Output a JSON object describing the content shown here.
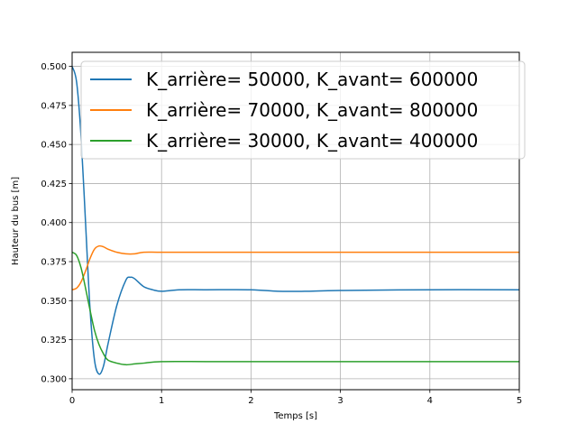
{
  "chart_data": {
    "type": "line",
    "title": "",
    "xlabel": "Temps [s]",
    "ylabel": "Hauteur du bus [m]",
    "xlim": [
      0,
      5
    ],
    "ylim": [
      0.293,
      0.509
    ],
    "xticks": [
      0,
      1,
      2,
      3,
      4,
      5
    ],
    "xtick_labels": [
      "0",
      "1",
      "2",
      "3",
      "4",
      "5"
    ],
    "yticks": [
      0.3,
      0.325,
      0.35,
      0.375,
      0.4,
      0.425,
      0.45,
      0.475,
      0.5
    ],
    "ytick_labels": [
      "0.300",
      "0.325",
      "0.350",
      "0.375",
      "0.400",
      "0.425",
      "0.450",
      "0.475",
      "0.500"
    ],
    "grid": true,
    "legend_position": "top-right",
    "series": [
      {
        "name": "K_arrière= 50000, K_avant= 600000",
        "color": "#1f77b4",
        "x": [
          0,
          0.05,
          0.1,
          0.15,
          0.2,
          0.25,
          0.3,
          0.35,
          0.4,
          0.5,
          0.6,
          0.65,
          0.7,
          0.8,
          0.9,
          1.0,
          1.2,
          1.5,
          2.0,
          2.3,
          2.6,
          3.0,
          4.0,
          5.0
        ],
        "y": [
          0.5,
          0.49,
          0.455,
          0.4,
          0.345,
          0.312,
          0.303,
          0.308,
          0.322,
          0.347,
          0.363,
          0.365,
          0.364,
          0.359,
          0.357,
          0.356,
          0.357,
          0.357,
          0.357,
          0.356,
          0.356,
          0.3565,
          0.357,
          0.357
        ]
      },
      {
        "name": "K_arrière= 70000, K_avant= 800000",
        "color": "#ff7f0e",
        "x": [
          0,
          0.05,
          0.1,
          0.15,
          0.2,
          0.25,
          0.3,
          0.35,
          0.4,
          0.5,
          0.6,
          0.7,
          0.8,
          1.0,
          1.5,
          2.0,
          3.0,
          4.0,
          5.0
        ],
        "y": [
          0.357,
          0.358,
          0.362,
          0.369,
          0.377,
          0.383,
          0.385,
          0.3845,
          0.383,
          0.381,
          0.38,
          0.38,
          0.381,
          0.381,
          0.381,
          0.381,
          0.381,
          0.381,
          0.381
        ]
      },
      {
        "name": "K_arrière= 30000, K_avant= 400000",
        "color": "#2ca02c",
        "x": [
          0,
          0.05,
          0.1,
          0.15,
          0.2,
          0.25,
          0.3,
          0.35,
          0.4,
          0.5,
          0.6,
          0.7,
          0.8,
          1.0,
          1.5,
          2.0,
          3.0,
          4.0,
          5.0
        ],
        "y": [
          0.381,
          0.379,
          0.371,
          0.358,
          0.344,
          0.331,
          0.322,
          0.316,
          0.312,
          0.31,
          0.309,
          0.3095,
          0.31,
          0.311,
          0.311,
          0.311,
          0.311,
          0.311,
          0.311
        ]
      }
    ]
  }
}
